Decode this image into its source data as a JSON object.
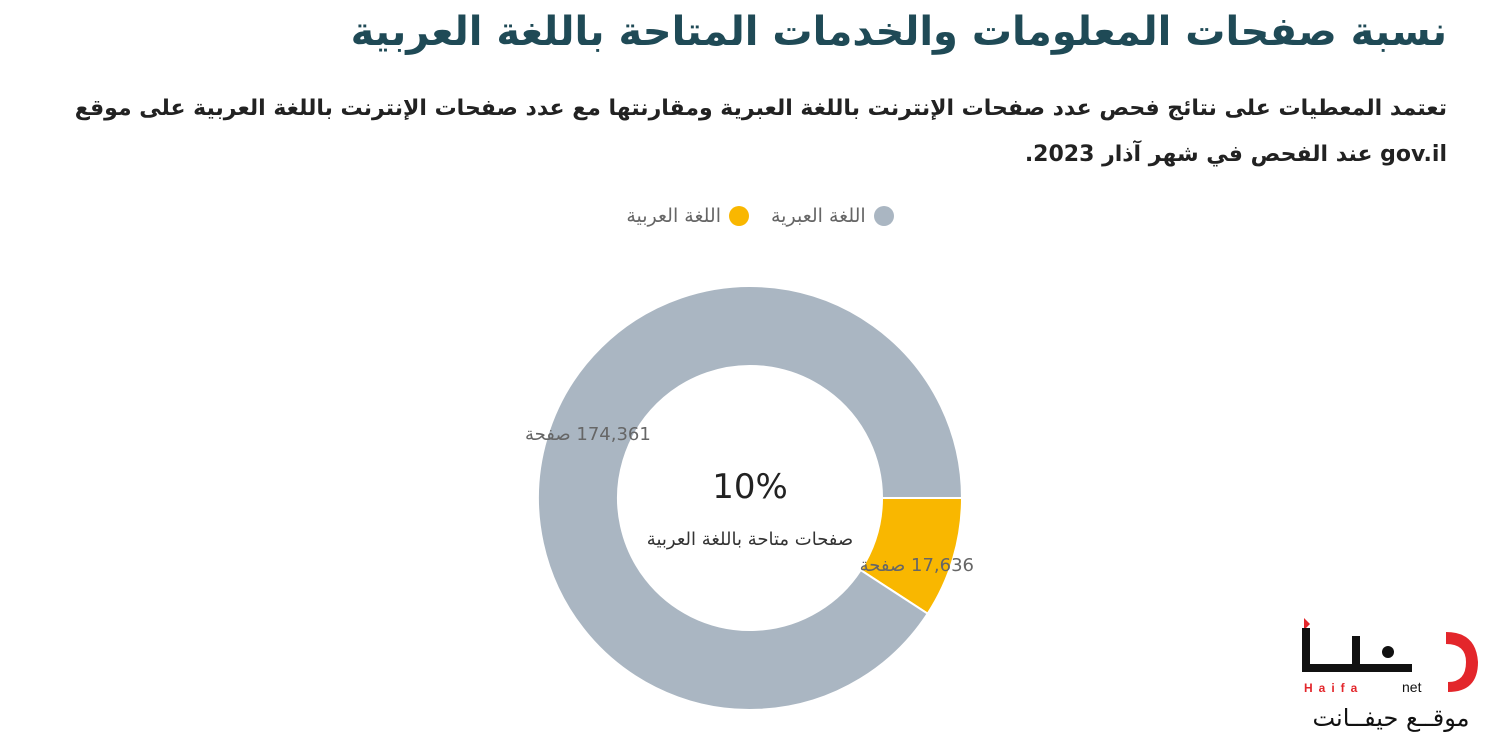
{
  "header": {
    "title": "نسبة صفحات المعلومات والخدمات المتاحة باللغة العربية",
    "subtitle": "تعتمد المعطيات على نتائج فحص عدد صفحات الإنترنت باللغة العبرية ومقارنتها مع عدد صفحات الإنترنت باللغة العربية على موقع gov.il عند الفحص في شهر آذار 2023."
  },
  "chart_data": {
    "type": "pie",
    "donut": true,
    "categories": [
      "اللغة العبرية",
      "اللغة العربية"
    ],
    "values": [
      174361,
      17636
    ],
    "data_labels": [
      "174,361 صفحة",
      "17,636 صفحة"
    ],
    "colors": [
      "#aab6c2",
      "#f9b700"
    ],
    "center_value": "10%",
    "center_label": "صفحات متاحة باللغة العربية",
    "legend_position": "top"
  },
  "logo": {
    "brand_text": "حيفا",
    "latin_text": "Haifa",
    "suffix_text": "net",
    "caption": "موقــع حيفــانت",
    "colors": {
      "red": "#e3262b",
      "black": "#111111"
    }
  }
}
